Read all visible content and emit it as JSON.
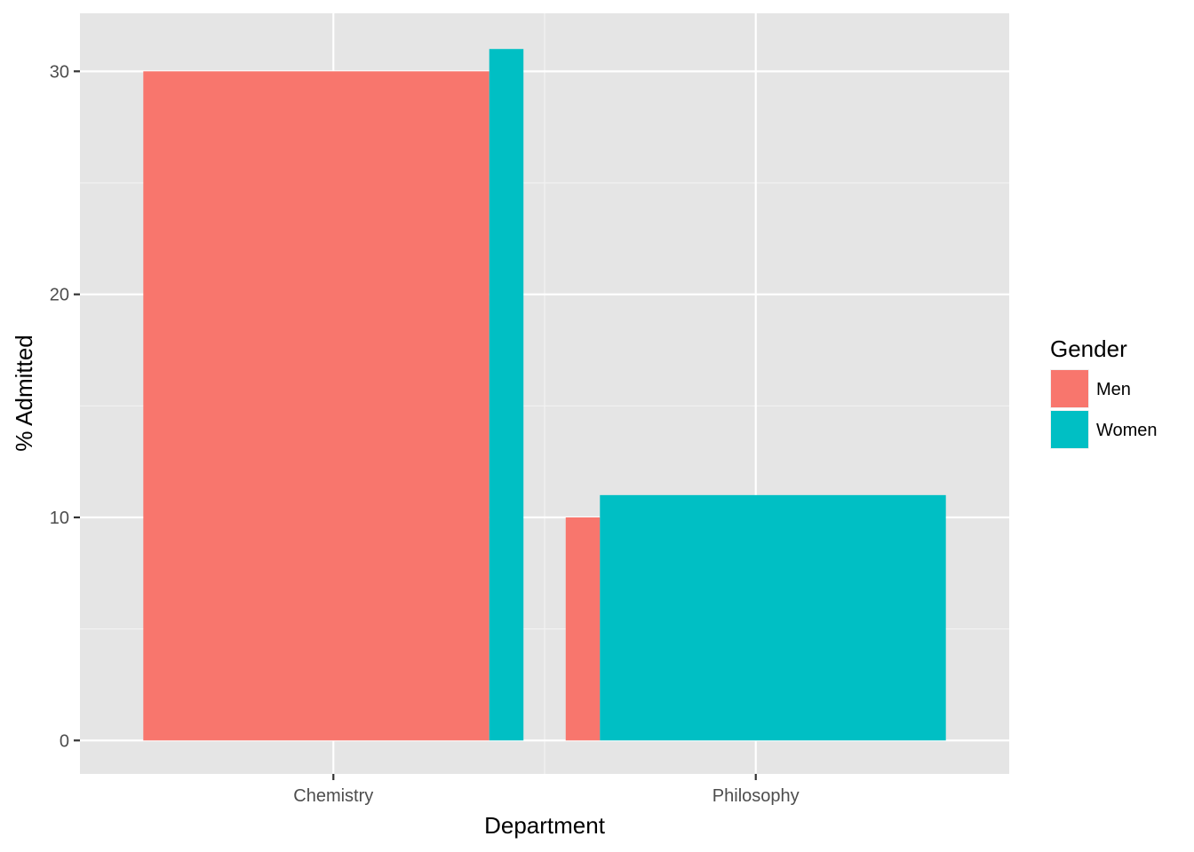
{
  "chart_data": {
    "type": "bar",
    "xlabel": "Department",
    "ylabel": "% Admitted",
    "categories": [
      "Chemistry",
      "Philosophy"
    ],
    "series": [
      {
        "name": "Men",
        "color": "#f8766d",
        "values": [
          30,
          10
        ]
      },
      {
        "name": "Women",
        "color": "#00bfc4",
        "values": [
          31,
          11
        ]
      }
    ],
    "bar_share_of_dodge": [
      [
        0.91,
        0.09
      ],
      [
        0.09,
        0.91
      ]
    ],
    "yticks": [
      0,
      10,
      20,
      30
    ],
    "ylim": [
      -1.5,
      32.6
    ],
    "grid": true,
    "panel_background": "#e5e5e5",
    "legend": {
      "title": "Gender",
      "position": "right"
    }
  }
}
